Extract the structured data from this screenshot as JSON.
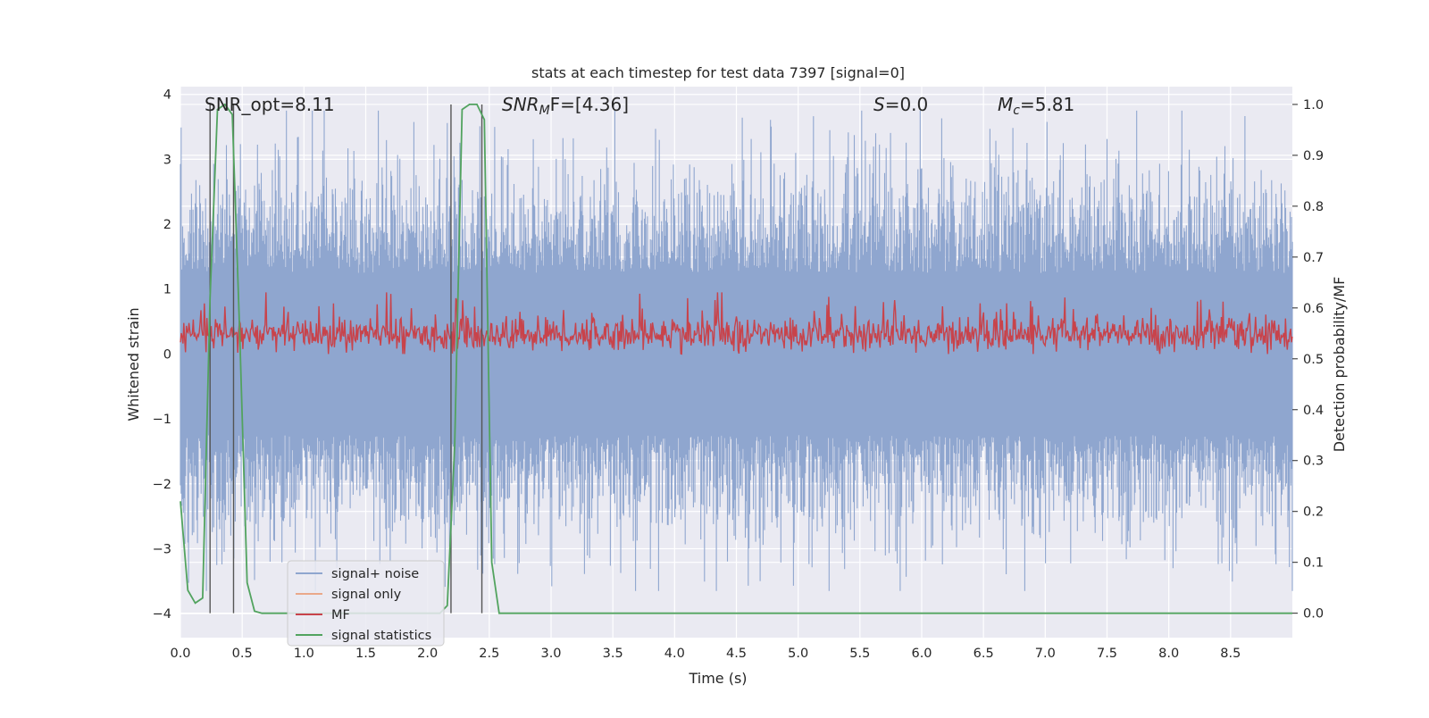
{
  "chart_data": {
    "type": "line",
    "title": "stats at each timestep for test data 7397 [signal=0]",
    "xlabel": "Time (s)",
    "ylabel": "Whitened strain",
    "y2label": "Detection probability/MF",
    "xlim": [
      0.0,
      9.0
    ],
    "ylim": [
      -4.37,
      4.12
    ],
    "y2lim": [
      -0.048,
      1.035
    ],
    "xticks": [
      "0.0",
      "0.5",
      "1.0",
      "1.5",
      "2.0",
      "2.5",
      "3.0",
      "3.5",
      "4.0",
      "4.5",
      "5.0",
      "5.5",
      "6.0",
      "6.5",
      "7.0",
      "7.5",
      "8.0",
      "8.5"
    ],
    "yticks": [
      "4",
      "3",
      "2",
      "1",
      "0",
      "−1",
      "−2",
      "−3",
      "−4"
    ],
    "y2ticks": [
      "1.0",
      "0.9",
      "0.8",
      "0.7",
      "0.6",
      "0.5",
      "0.4",
      "0.3",
      "0.2",
      "0.1",
      "0.0"
    ],
    "grid": true,
    "legend_position": "bottom-left",
    "annotations": {
      "snr_opt": "SNR_opt=8.11",
      "snr_mf_sym": "SNR",
      "snr_mf_sub": "M",
      "snr_mf_rest": "F=[4.36]",
      "s_sym": "S",
      "s_rest": "=0.0",
      "mc_sym": "M",
      "mc_sub": "c",
      "mc_rest": "=5.81"
    },
    "detection_markers_s": [
      0.24,
      0.43,
      2.19,
      2.44
    ],
    "series": [
      {
        "name": "signal+ noise",
        "color": "#8fa6cf",
        "note": "whitened noise, amplitude about ±2.5 with peaks to ±3.7"
      },
      {
        "name": "signal only",
        "color": "#eaa88a",
        "values": []
      },
      {
        "name": "MF",
        "color": "#c8434b",
        "range": [
          0.0,
          0.95
        ]
      },
      {
        "name": "signal statistics",
        "color": "#52a35f",
        "axis": "right",
        "x": [
          0.0,
          0.06,
          0.12,
          0.18,
          0.24,
          0.3,
          0.36,
          0.42,
          0.48,
          0.54,
          0.6,
          0.66,
          1.0,
          1.5,
          2.0,
          2.1,
          2.16,
          2.22,
          2.28,
          2.34,
          2.4,
          2.46,
          2.52,
          2.58,
          3.0,
          4.0,
          5.0,
          6.0,
          7.0,
          8.0,
          9.0
        ],
        "values": [
          0.22,
          0.045,
          0.02,
          0.03,
          0.62,
          0.99,
          1.0,
          0.98,
          0.55,
          0.06,
          0.004,
          0.0,
          0.0,
          0.0,
          0.0,
          0.0,
          0.015,
          0.33,
          0.99,
          1.0,
          1.0,
          0.97,
          0.1,
          0.0,
          0.0,
          0.0,
          0.0,
          0.0,
          0.0,
          0.0,
          0.0
        ]
      }
    ]
  }
}
